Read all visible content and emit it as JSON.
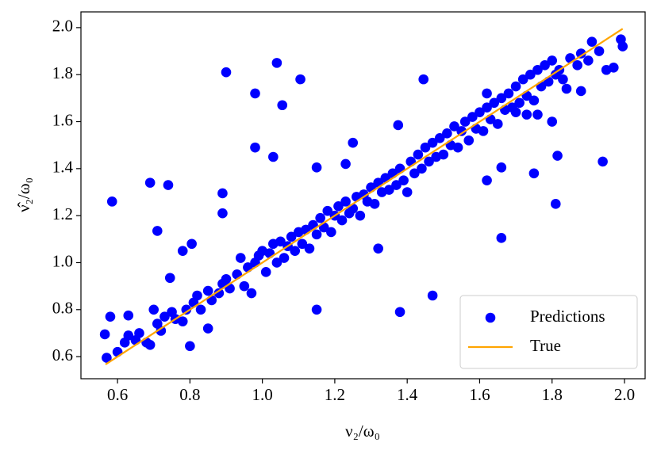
{
  "chart_data": {
    "type": "scatter",
    "x_label": "ν₂/ω₀",
    "y_label": "ν̂₂/ω₀",
    "xlim": [
      0.499,
      2.057
    ],
    "ylim": [
      0.506,
      2.067
    ],
    "xticks": [
      0.6,
      0.8,
      {
        "value": 1,
        "label": "1.0"
      },
      1.2,
      1.4,
      1.6,
      1.8,
      {
        "value": 2,
        "label": "2.0"
      }
    ],
    "yticks": [
      0.6,
      0.8,
      {
        "value": 1,
        "label": "1.0"
      },
      1.2,
      1.4,
      1.6,
      1.8,
      {
        "value": 2,
        "label": "2.0"
      }
    ],
    "legend": "lower right",
    "series": [
      {
        "name": "Predictions",
        "color": "#0000ff",
        "mode": "markers",
        "x": [
          0.585,
          0.69,
          0.74,
          0.71,
          0.745,
          0.9,
          0.98,
          1.04,
          1.055,
          1.105,
          0.98,
          1.03,
          0.89,
          0.89,
          0.805,
          0.78,
          1.15,
          1.38,
          1.47,
          1.32,
          1.66,
          1.81,
          1.445,
          1.375,
          1.25,
          1.15,
          1.23,
          1.66,
          1.75,
          1.815,
          1.94,
          1.62,
          0.565,
          0.58,
          0.63,
          0.57,
          0.85,
          0.8,
          0.6,
          0.62,
          0.63,
          0.65,
          0.66,
          0.68,
          0.69,
          0.7,
          0.71,
          0.72,
          0.73,
          0.75,
          0.76,
          0.78,
          0.79,
          0.81,
          0.82,
          0.83,
          0.85,
          0.86,
          0.88,
          0.89,
          0.9,
          0.91,
          0.93,
          0.94,
          0.95,
          0.96,
          0.97,
          0.98,
          0.99,
          1.0,
          1.01,
          1.02,
          1.03,
          1.04,
          1.05,
          1.06,
          1.07,
          1.08,
          1.09,
          1.1,
          1.11,
          1.12,
          1.13,
          1.14,
          1.15,
          1.16,
          1.17,
          1.18,
          1.19,
          1.2,
          1.21,
          1.22,
          1.23,
          1.24,
          1.25,
          1.26,
          1.27,
          1.28,
          1.29,
          1.3,
          1.31,
          1.32,
          1.33,
          1.34,
          1.35,
          1.36,
          1.37,
          1.38,
          1.39,
          1.4,
          1.41,
          1.42,
          1.43,
          1.44,
          1.45,
          1.46,
          1.47,
          1.48,
          1.49,
          1.5,
          1.51,
          1.52,
          1.53,
          1.54,
          1.55,
          1.56,
          1.57,
          1.58,
          1.59,
          1.6,
          1.61,
          1.62,
          1.63,
          1.64,
          1.65,
          1.66,
          1.67,
          1.68,
          1.69,
          1.7,
          1.71,
          1.72,
          1.73,
          1.74,
          1.75,
          1.76,
          1.77,
          1.78,
          1.79,
          1.8,
          1.81,
          1.82,
          1.83,
          1.85,
          1.87,
          1.88,
          1.9,
          1.91,
          1.93,
          1.95,
          1.97,
          1.99,
          1.995,
          1.62,
          1.7,
          1.73,
          1.76,
          1.8,
          1.84,
          1.88
        ],
        "values": [
          1.26,
          1.34,
          1.33,
          1.135,
          0.935,
          1.81,
          1.72,
          1.85,
          1.67,
          1.78,
          1.49,
          1.45,
          1.295,
          1.21,
          1.08,
          1.05,
          0.8,
          0.79,
          0.86,
          1.06,
          1.105,
          1.25,
          1.78,
          1.585,
          1.51,
          1.405,
          1.42,
          1.405,
          1.38,
          1.455,
          1.43,
          1.35,
          0.695,
          0.77,
          0.775,
          0.595,
          0.72,
          0.645,
          0.62,
          0.66,
          0.69,
          0.67,
          0.7,
          0.66,
          0.65,
          0.8,
          0.74,
          0.71,
          0.77,
          0.79,
          0.76,
          0.75,
          0.8,
          0.83,
          0.86,
          0.8,
          0.88,
          0.84,
          0.87,
          0.91,
          0.93,
          0.89,
          0.95,
          1.02,
          0.9,
          0.98,
          0.87,
          1.0,
          1.03,
          1.05,
          0.96,
          1.04,
          1.08,
          1.0,
          1.09,
          1.02,
          1.07,
          1.11,
          1.05,
          1.13,
          1.08,
          1.14,
          1.06,
          1.16,
          1.12,
          1.19,
          1.15,
          1.22,
          1.13,
          1.2,
          1.24,
          1.18,
          1.26,
          1.21,
          1.23,
          1.28,
          1.2,
          1.29,
          1.26,
          1.32,
          1.25,
          1.34,
          1.3,
          1.36,
          1.31,
          1.38,
          1.33,
          1.4,
          1.35,
          1.3,
          1.43,
          1.38,
          1.46,
          1.4,
          1.49,
          1.43,
          1.51,
          1.45,
          1.53,
          1.46,
          1.55,
          1.5,
          1.58,
          1.49,
          1.56,
          1.6,
          1.52,
          1.62,
          1.57,
          1.64,
          1.56,
          1.66,
          1.61,
          1.68,
          1.59,
          1.7,
          1.65,
          1.72,
          1.66,
          1.75,
          1.68,
          1.78,
          1.71,
          1.8,
          1.69,
          1.82,
          1.75,
          1.84,
          1.77,
          1.86,
          1.8,
          1.82,
          1.78,
          1.87,
          1.84,
          1.89,
          1.86,
          1.94,
          1.9,
          1.82,
          1.83,
          1.95,
          1.92,
          1.72,
          1.64,
          1.63,
          1.63,
          1.6,
          1.74,
          1.73
        ]
      },
      {
        "name": "True",
        "color": "#ffa500",
        "mode": "line",
        "x": [
          0.567,
          1.995
        ],
        "values": [
          0.567,
          1.995
        ]
      }
    ]
  }
}
